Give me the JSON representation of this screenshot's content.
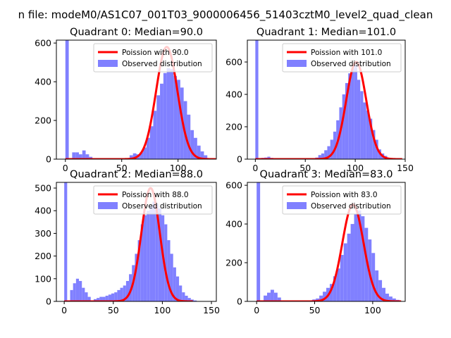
{
  "figure": {
    "suptitle": "n file: modeM0/AS1C07_001T03_9000006456_51403cztM0_level2_quad_clean"
  },
  "colors": {
    "hist": "#8080ff",
    "poisson": "#ff0000",
    "axis": "#000000"
  },
  "chart_data": [
    {
      "type": "bar",
      "title": "Quadrant 0: Median=90.0",
      "xlim": [
        -8,
        134
      ],
      "ylim": [
        0,
        615
      ],
      "xticks": [
        0,
        50,
        100
      ],
      "yticks": [
        0,
        200,
        400,
        600
      ],
      "legend": [
        "Poission with 90.0",
        "Observed distribution"
      ],
      "legend_position": "top-right",
      "bin_width": 3,
      "observed": {
        "x": [
          0,
          6,
          9,
          12,
          15,
          18,
          21,
          51,
          54,
          57,
          60,
          63,
          66,
          69,
          72,
          75,
          78,
          81,
          84,
          87,
          90,
          93,
          96,
          99,
          102,
          105,
          108,
          111,
          114,
          117,
          120,
          123,
          126
        ],
        "y": [
          615,
          35,
          35,
          25,
          45,
          25,
          12,
          5,
          5,
          20,
          30,
          25,
          35,
          60,
          110,
          170,
          250,
          330,
          390,
          445,
          470,
          465,
          430,
          410,
          370,
          300,
          230,
          150,
          110,
          70,
          40,
          20,
          5
        ]
      },
      "poisson": {
        "name": "Poission with 90.0",
        "mu": 90.0,
        "peak": 580
      }
    },
    {
      "type": "bar",
      "title": "Quadrant 1: Median=101.0",
      "xlim": [
        -8,
        150
      ],
      "ylim": [
        0,
        735
      ],
      "xticks": [
        0,
        50,
        100,
        150
      ],
      "yticks": [
        0,
        200,
        400,
        600
      ],
      "legend": [
        "Poission with 101.0",
        "Observed distribution"
      ],
      "legend_position": "top-right",
      "bin_width": 3,
      "observed": {
        "x": [
          0,
          6,
          9,
          12,
          15,
          60,
          63,
          66,
          69,
          72,
          75,
          78,
          81,
          84,
          87,
          90,
          93,
          96,
          99,
          102,
          105,
          108,
          111,
          114,
          117,
          120,
          123,
          126,
          129,
          132
        ],
        "y": [
          735,
          8,
          10,
          15,
          8,
          10,
          25,
          35,
          55,
          80,
          120,
          170,
          240,
          320,
          400,
          470,
          530,
          560,
          580,
          490,
          420,
          350,
          300,
          250,
          180,
          120,
          60,
          35,
          20,
          8
        ]
      },
      "poisson": {
        "name": "Poission with 101.0",
        "mu": 101.0,
        "peak": 600
      }
    },
    {
      "type": "bar",
      "title": "Quadrant 2: Median=88.0",
      "xlim": [
        -8,
        155
      ],
      "ylim": [
        0,
        525
      ],
      "xticks": [
        0,
        50,
        100,
        150
      ],
      "yticks": [
        0,
        100,
        200,
        300,
        400,
        500
      ],
      "legend": [
        "Poission with 88.0",
        "Observed distribution"
      ],
      "legend_position": "top-right",
      "bin_width": 3,
      "observed": {
        "x": [
          0,
          6,
          9,
          12,
          15,
          18,
          21,
          24,
          30,
          33,
          36,
          39,
          42,
          45,
          48,
          51,
          54,
          57,
          60,
          63,
          66,
          69,
          72,
          75,
          78,
          81,
          84,
          87,
          90,
          93,
          96,
          99,
          102,
          105,
          108,
          111,
          114,
          117,
          120,
          123,
          126,
          129,
          132
        ],
        "y": [
          525,
          50,
          80,
          100,
          90,
          60,
          40,
          20,
          10,
          15,
          20,
          20,
          25,
          30,
          35,
          40,
          50,
          60,
          70,
          90,
          120,
          160,
          210,
          270,
          340,
          380,
          400,
          420,
          440,
          430,
          410,
          380,
          340,
          270,
          210,
          150,
          110,
          70,
          40,
          25,
          15,
          8,
          4
        ]
      },
      "poisson": {
        "name": "Poission with 88.0",
        "mu": 88.0,
        "peak": 500
      }
    },
    {
      "type": "bar",
      "title": "Quadrant 3: Median=83.0",
      "xlim": [
        -8,
        128
      ],
      "ylim": [
        0,
        615
      ],
      "xticks": [
        0,
        50,
        100
      ],
      "yticks": [
        0,
        200,
        400,
        600
      ],
      "legend": [
        "Poission with 83.0",
        "Observed distribution"
      ],
      "legend_position": "top-right",
      "bin_width": 3,
      "observed": {
        "x": [
          0,
          6,
          9,
          12,
          15,
          18,
          48,
          51,
          54,
          57,
          60,
          63,
          66,
          69,
          72,
          75,
          78,
          81,
          84,
          87,
          90,
          93,
          96,
          99,
          102,
          105,
          108,
          111,
          114,
          117,
          120
        ],
        "y": [
          615,
          30,
          45,
          60,
          45,
          20,
          10,
          15,
          30,
          50,
          70,
          90,
          130,
          170,
          240,
          300,
          350,
          400,
          450,
          470,
          440,
          380,
          320,
          250,
          160,
          110,
          70,
          40,
          25,
          15,
          8
        ]
      },
      "poisson": {
        "name": "Poission with 83.0",
        "mu": 83.0,
        "peak": 500
      }
    }
  ]
}
